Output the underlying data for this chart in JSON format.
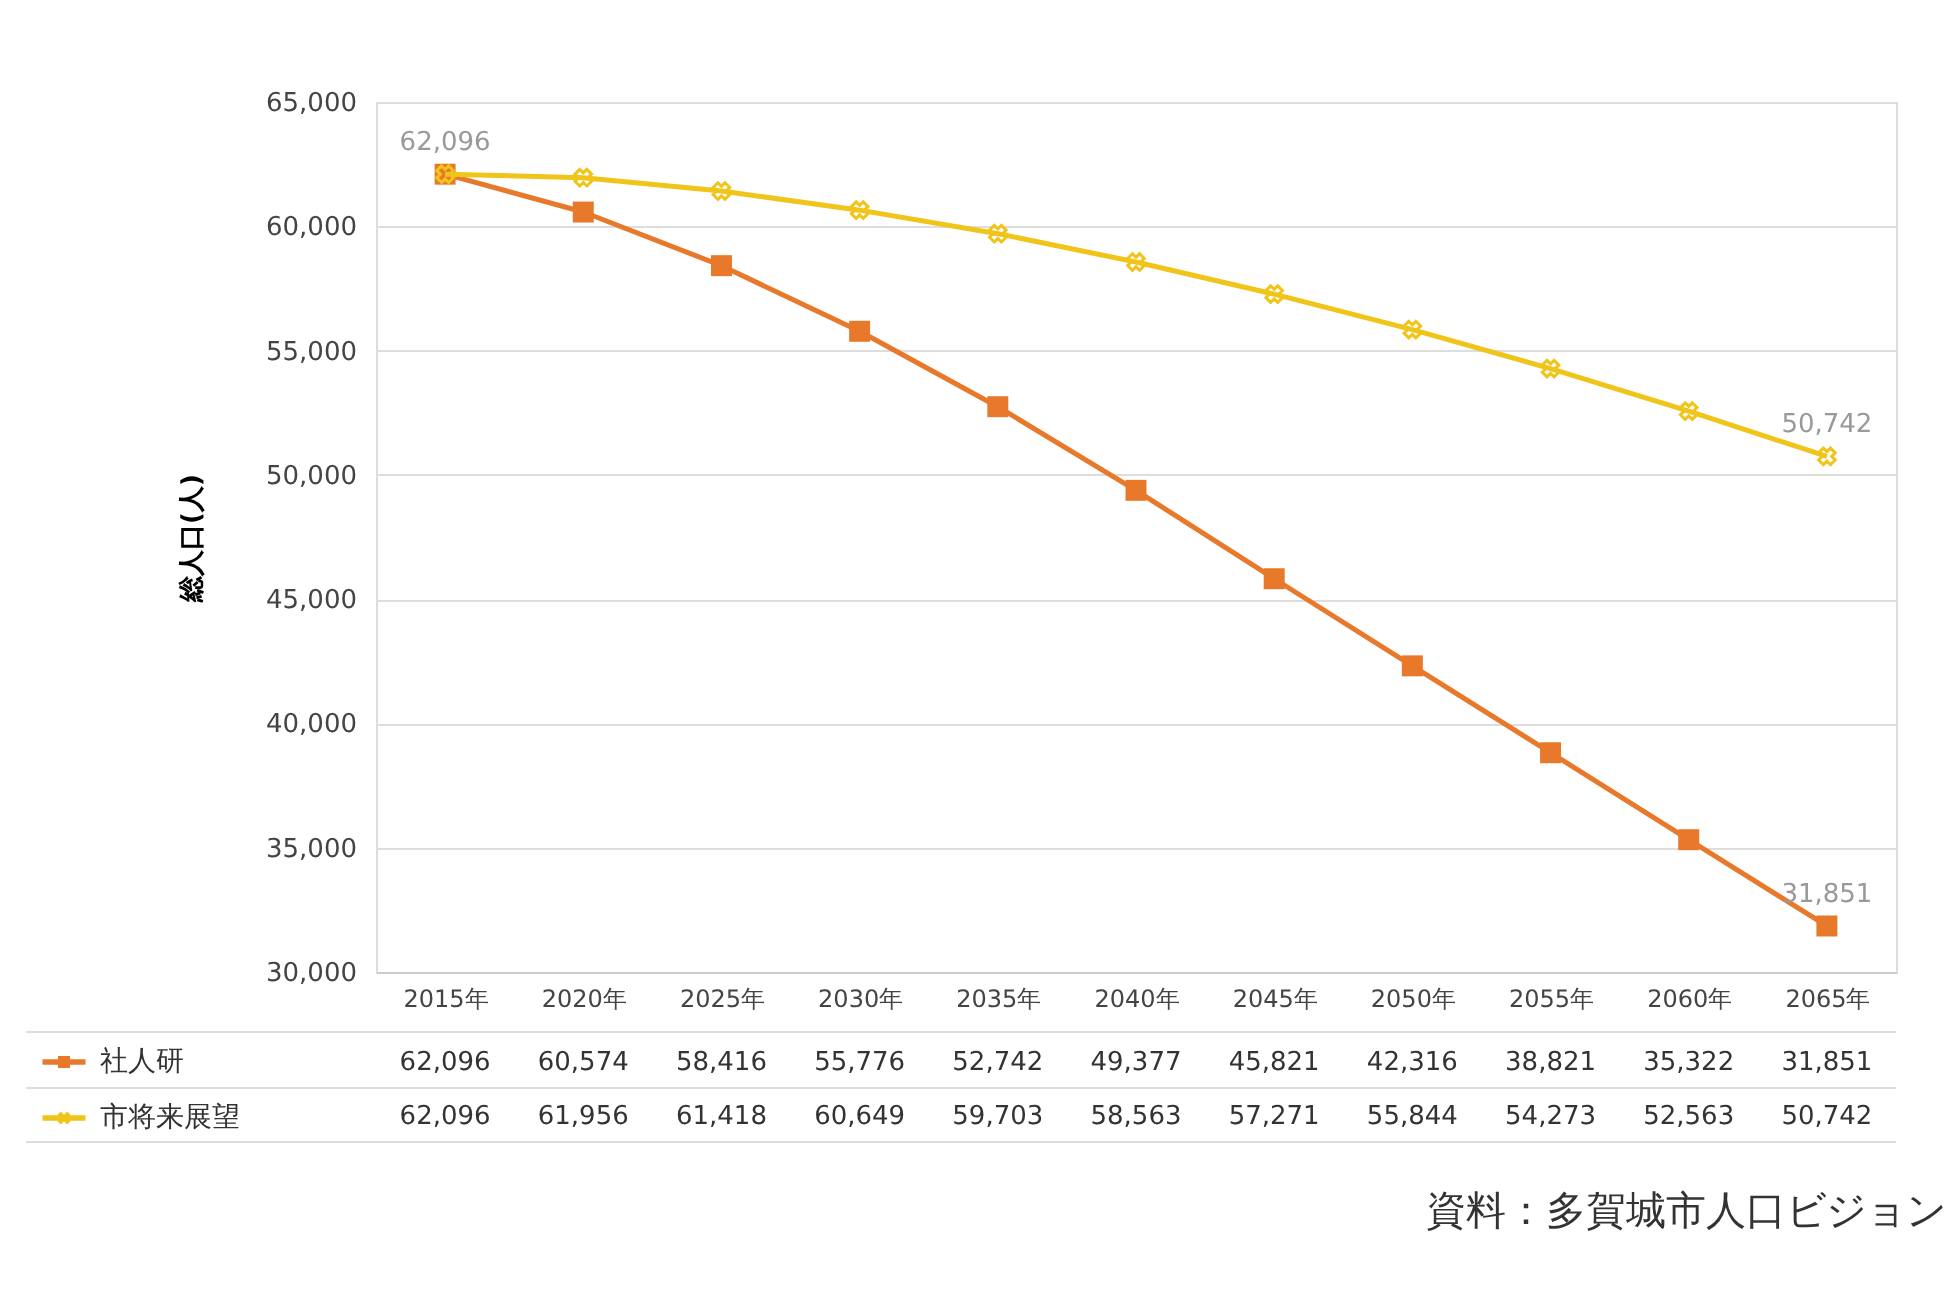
{
  "chart_data": {
    "type": "line",
    "ylabel": "総人口(人)",
    "categories": [
      "2015年",
      "2020年",
      "2025年",
      "2030年",
      "2035年",
      "2040年",
      "2045年",
      "2050年",
      "2055年",
      "2060年",
      "2065年"
    ],
    "series": [
      {
        "name": "社人研",
        "color": "#e8792a",
        "marker": "square",
        "values": [
          62096,
          60574,
          58416,
          55776,
          52742,
          49377,
          45821,
          42316,
          38821,
          35322,
          31851
        ],
        "value_labels": [
          "62,096",
          "60,574",
          "58,416",
          "55,776",
          "52,742",
          "49,377",
          "45,821",
          "42,316",
          "38,821",
          "35,322",
          "31,851"
        ]
      },
      {
        "name": "市将来展望",
        "color": "#f0c419",
        "marker": "cross",
        "values": [
          62096,
          61956,
          61418,
          60649,
          59703,
          58563,
          57271,
          55844,
          54273,
          52563,
          50742
        ],
        "value_labels": [
          "62,096",
          "61,956",
          "61,418",
          "60,649",
          "59,703",
          "58,563",
          "57,271",
          "55,844",
          "54,273",
          "52,563",
          "50,742"
        ]
      }
    ],
    "ylim": [
      30000,
      65000
    ],
    "yticks": [
      {
        "value": 30000,
        "label": "30,000"
      },
      {
        "value": 35000,
        "label": "35,000"
      },
      {
        "value": 40000,
        "label": "40,000"
      },
      {
        "value": 45000,
        "label": "45,000"
      },
      {
        "value": 50000,
        "label": "50,000"
      },
      {
        "value": 55000,
        "label": "55,000"
      },
      {
        "value": 60000,
        "label": "60,000"
      },
      {
        "value": 65000,
        "label": "65,000"
      }
    ],
    "grid": "y",
    "legend": "bottom left",
    "annotations": [
      {
        "text": "62,096",
        "x": "2015年",
        "y": 62096
      },
      {
        "text": "50,742",
        "x": "2065年",
        "y": 50742
      },
      {
        "text": "31,851",
        "x": "2065年",
        "y": 31851
      },
      "資料：多賀城市人口ビジョン"
    ]
  }
}
